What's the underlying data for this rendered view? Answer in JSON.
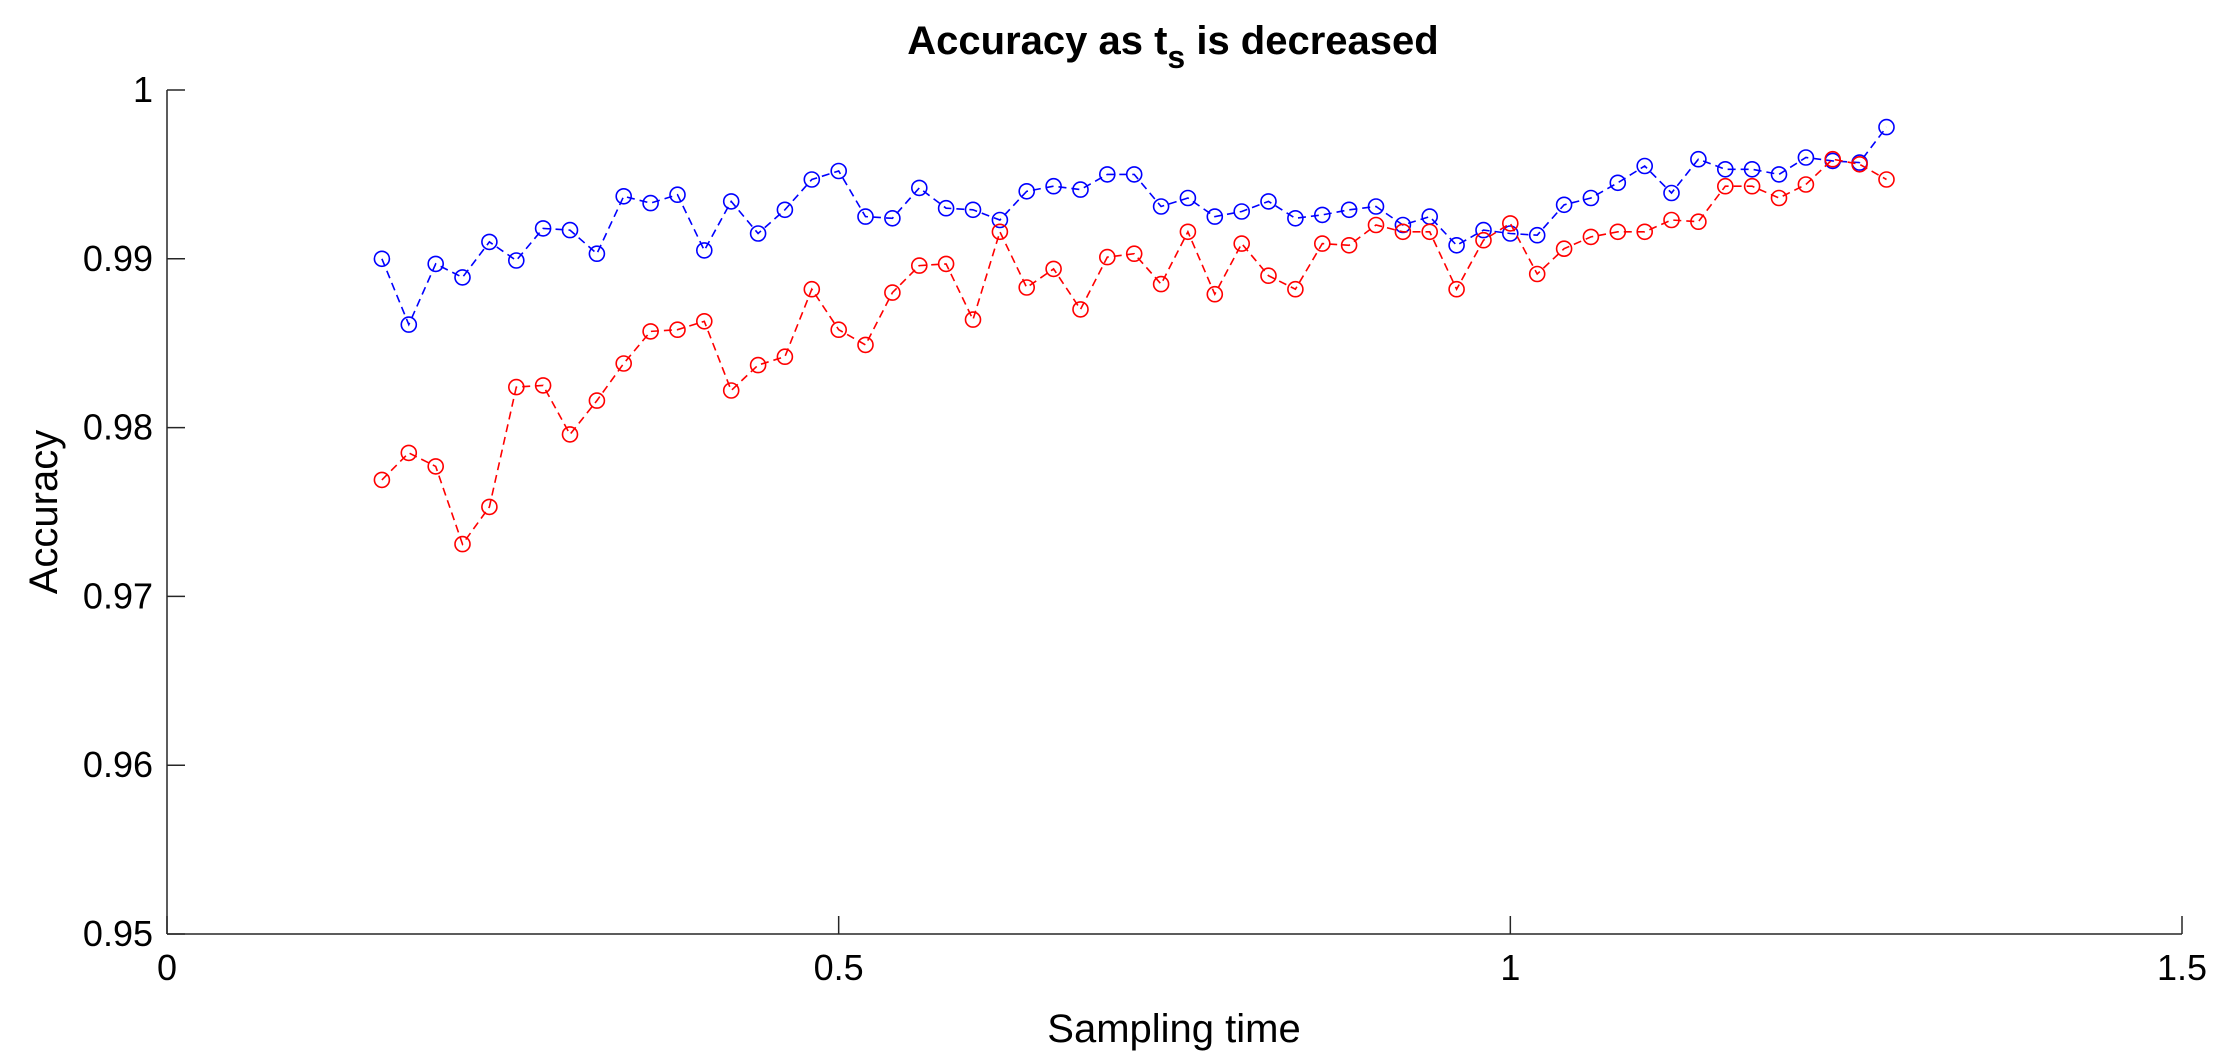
{
  "chart_data": {
    "type": "line",
    "title": "Accuracy as t",
    "title_subscript": "s",
    "title_suffix": " is decreased",
    "xlabel": "Sampling time",
    "ylabel": "Accuracy",
    "xlim": [
      0,
      1.5
    ],
    "ylim": [
      0.95,
      1
    ],
    "x_ticks": [
      0,
      0.5,
      1,
      1.5
    ],
    "x_tick_labels": [
      "0",
      "0.5",
      "1",
      "1.5"
    ],
    "y_ticks": [
      0.95,
      0.96,
      0.97,
      0.98,
      0.99,
      1
    ],
    "y_tick_labels": [
      "0.95",
      "0.96",
      "0.97",
      "0.98",
      "0.99",
      "1"
    ],
    "grid": false,
    "legend": "none",
    "marker": "circle",
    "line_style": "dashed",
    "x": [
      0.16,
      0.18,
      0.2,
      0.22,
      0.24,
      0.26,
      0.28,
      0.3,
      0.32,
      0.34,
      0.36,
      0.38,
      0.4,
      0.42,
      0.44,
      0.46,
      0.48,
      0.5,
      0.52,
      0.54,
      0.56,
      0.58,
      0.6,
      0.62,
      0.64,
      0.66,
      0.68,
      0.7,
      0.72,
      0.74,
      0.76,
      0.78,
      0.8,
      0.82,
      0.84,
      0.86,
      0.88,
      0.9,
      0.92,
      0.94,
      0.96,
      0.98,
      1.0,
      1.02,
      1.04,
      1.06,
      1.08,
      1.1,
      1.12,
      1.14,
      1.16,
      1.18,
      1.2,
      1.22,
      1.24,
      1.26,
      1.28
    ],
    "series": [
      {
        "color": "#0000ff",
        "values": [
          0.99,
          0.9861,
          0.9897,
          0.9889,
          0.991,
          0.9899,
          0.9918,
          0.9917,
          0.9903,
          0.9937,
          0.9933,
          0.9938,
          0.9905,
          0.9934,
          0.9915,
          0.9929,
          0.9947,
          0.9952,
          0.9925,
          0.9924,
          0.9942,
          0.993,
          0.9929,
          0.9923,
          0.994,
          0.9943,
          0.9941,
          0.995,
          0.995,
          0.9931,
          0.9936,
          0.9925,
          0.9928,
          0.9934,
          0.9924,
          0.9926,
          0.9929,
          0.9931,
          0.992,
          0.9925,
          0.9908,
          0.9917,
          0.9915,
          0.9914,
          0.9932,
          0.9936,
          0.9945,
          0.9955,
          0.9939,
          0.9959,
          0.9953,
          0.9953,
          0.995,
          0.996,
          0.9958,
          0.9957,
          0.9978
        ]
      },
      {
        "color": "#ff0000",
        "values": [
          0.9769,
          0.9785,
          0.9777,
          0.9731,
          0.9753,
          0.9824,
          0.9825,
          0.9796,
          0.9816,
          0.9838,
          0.9857,
          0.9858,
          0.9863,
          0.9822,
          0.9837,
          0.9842,
          0.9882,
          0.9858,
          0.9849,
          0.988,
          0.9896,
          0.9897,
          0.9864,
          0.9916,
          0.9883,
          0.9894,
          0.987,
          0.9901,
          0.9903,
          0.9885,
          0.9916,
          0.9879,
          0.9909,
          0.989,
          0.9882,
          0.9909,
          0.9908,
          0.992,
          0.9916,
          0.9916,
          0.9882,
          0.9911,
          0.9921,
          0.9891,
          0.9906,
          0.9913,
          0.9916,
          0.9916,
          0.9923,
          0.9922,
          0.9943,
          0.9943,
          0.9936,
          0.9944,
          0.9959,
          0.9956,
          0.9947
        ]
      }
    ]
  }
}
